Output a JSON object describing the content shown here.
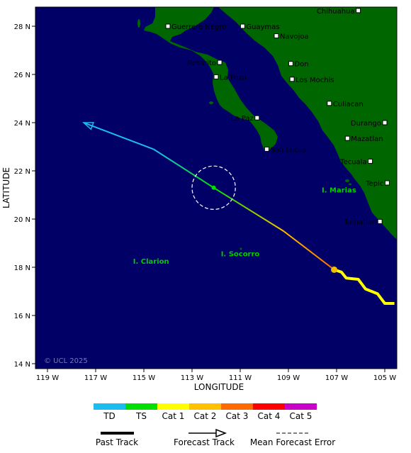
{
  "map": {
    "x_axis_label": "LONGITUDE",
    "y_axis_label": "LATITUDE",
    "x_ticks": [
      {
        "value": -119,
        "label": "119 W"
      },
      {
        "value": -117,
        "label": "117 W"
      },
      {
        "value": -115,
        "label": "115 W"
      },
      {
        "value": -113,
        "label": "113 W"
      },
      {
        "value": -111,
        "label": "111 W"
      },
      {
        "value": -109,
        "label": "109 W"
      },
      {
        "value": -107,
        "label": "107 W"
      },
      {
        "value": -105,
        "label": "105 W"
      }
    ],
    "y_ticks": [
      {
        "value": 28,
        "label": "28 N"
      },
      {
        "value": 26,
        "label": "26 N"
      },
      {
        "value": 24,
        "label": "24 N"
      },
      {
        "value": 22,
        "label": "22 N"
      },
      {
        "value": 20,
        "label": "20 N"
      },
      {
        "value": 18,
        "label": "18 N"
      },
      {
        "value": 16,
        "label": "16 N"
      },
      {
        "value": 14,
        "label": "14 N"
      }
    ],
    "copyright": "© UCL 2025",
    "cities": [
      {
        "name": "Chihuahua",
        "lon": -106.1,
        "lat": 28.65,
        "side": "left"
      },
      {
        "name": "Guerrero Negro",
        "lon": -114.0,
        "lat": 28.0,
        "side": "right"
      },
      {
        "name": "Guaymas",
        "lon": -110.9,
        "lat": 28.0,
        "side": "right"
      },
      {
        "name": "Navojoa",
        "lon": -109.5,
        "lat": 27.6,
        "side": "right"
      },
      {
        "name": "Rosarito",
        "lon": -111.85,
        "lat": 26.5,
        "side": "left"
      },
      {
        "name": "Don",
        "lon": -108.9,
        "lat": 26.45,
        "side": "right"
      },
      {
        "name": "La Poza",
        "lon": -112.0,
        "lat": 25.9,
        "side": "right"
      },
      {
        "name": "Los Mochis",
        "lon": -108.85,
        "lat": 25.8,
        "side": "right"
      },
      {
        "name": "Culiacan",
        "lon": -107.3,
        "lat": 24.8,
        "side": "right"
      },
      {
        "name": "La Paz",
        "lon": -110.3,
        "lat": 24.2,
        "side": "left"
      },
      {
        "name": "Durango",
        "lon": -105.0,
        "lat": 24.0,
        "side": "left"
      },
      {
        "name": "Mazatlan",
        "lon": -106.55,
        "lat": 23.35,
        "side": "right"
      },
      {
        "name": "San Lucas",
        "lon": -109.9,
        "lat": 22.9,
        "side": "right"
      },
      {
        "name": "Tecuala",
        "lon": -105.6,
        "lat": 22.4,
        "side": "left"
      },
      {
        "name": "Tepic",
        "lon": -104.9,
        "lat": 21.5,
        "side": "left"
      },
      {
        "name": "Tomatlan",
        "lon": -105.2,
        "lat": 19.9,
        "side": "left"
      }
    ],
    "islands": [
      {
        "name": "I. Marias",
        "lon": -106.9,
        "lat": 21.1
      },
      {
        "name": "I. Socorro",
        "lon": -111.0,
        "lat": 18.45
      },
      {
        "name": "I. Clarion",
        "lon": -114.7,
        "lat": 18.15
      }
    ],
    "past_track": [
      {
        "lon": -104.6,
        "lat": 16.5
      },
      {
        "lon": -105.0,
        "lat": 16.5
      },
      {
        "lon": -105.3,
        "lat": 16.9
      },
      {
        "lon": -105.8,
        "lat": 17.1
      },
      {
        "lon": -106.1,
        "lat": 17.5
      },
      {
        "lon": -106.6,
        "lat": 17.55
      },
      {
        "lon": -106.8,
        "lat": 17.8
      },
      {
        "lon": -107.1,
        "lat": 17.9
      }
    ],
    "current_position": {
      "lon": -107.1,
      "lat": 17.9
    },
    "forecast_track": [
      {
        "lon": -107.1,
        "lat": 17.9,
        "category": "Cat 3"
      },
      {
        "lon": -109.2,
        "lat": 19.5,
        "category": "Cat 2"
      },
      {
        "lon": -112.1,
        "lat": 21.3,
        "category": "TS"
      },
      {
        "lon": -114.6,
        "lat": 22.9,
        "category": "TD"
      },
      {
        "lon": -117.5,
        "lat": 24.0,
        "category": "TD"
      }
    ],
    "error_circle": {
      "lon": -112.1,
      "lat": 21.3,
      "radius_deg": 0.9
    }
  },
  "legend": {
    "categories": [
      {
        "label": "TD",
        "color": "#1bbcf0"
      },
      {
        "label": "TS",
        "color": "#00e000"
      },
      {
        "label": "Cat 1",
        "color": "#ffff00"
      },
      {
        "label": "Cat 2",
        "color": "#ffc000"
      },
      {
        "label": "Cat 3",
        "color": "#ff6a00"
      },
      {
        "label": "Cat 4",
        "color": "#ff0000"
      },
      {
        "label": "Cat 5",
        "color": "#c800c8"
      }
    ],
    "past_track_label": "Past Track",
    "forecast_track_label": "Forecast Track",
    "error_label": "Mean Forecast Error"
  },
  "colors": {
    "ocean": "#000066",
    "land": "#006600",
    "track_past": "#ffff00"
  }
}
